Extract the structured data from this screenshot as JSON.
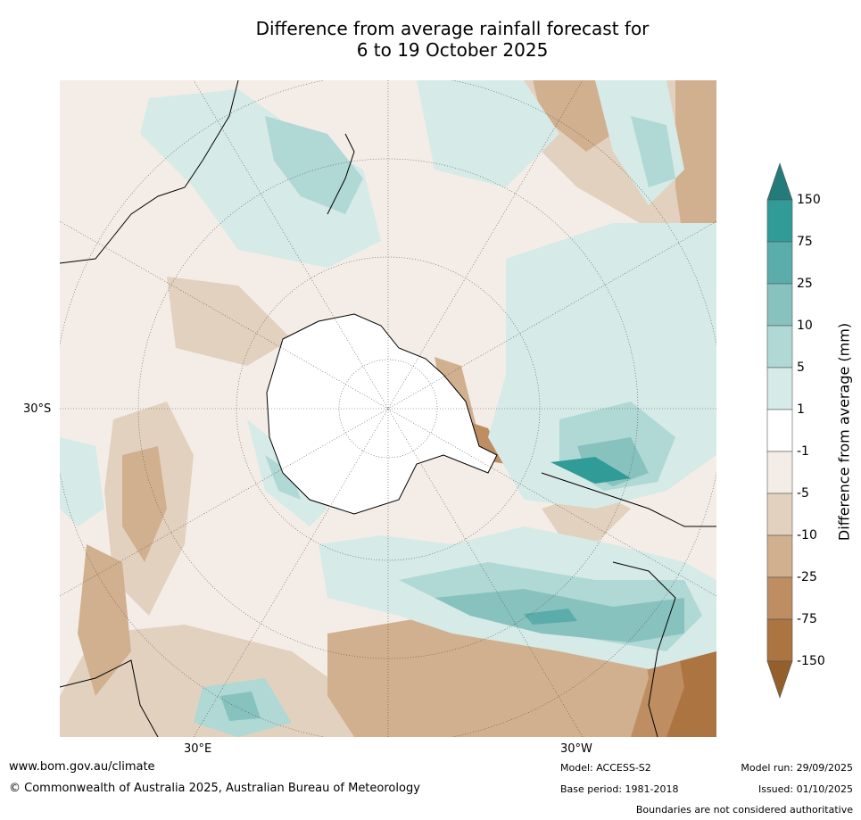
{
  "title": {
    "line1": "Difference from average rainfall forecast for",
    "line2": "6 to 19 October 2025"
  },
  "map": {
    "projection": "south-polar-stereographic",
    "lat_label": "30°S",
    "lon_labels": [
      "30°E",
      "30°W"
    ]
  },
  "colorbar": {
    "label": "Difference from average (mm)",
    "ticks": [
      "150",
      "75",
      "25",
      "10",
      "5",
      "1",
      "-1",
      "-5",
      "-10",
      "-25",
      "-75",
      "-150"
    ],
    "colors": {
      "gt150": "#237c7a",
      "c75_150": "#319b98",
      "c25_75": "#5aadaa",
      "c10_25": "#87c2bf",
      "c5_10": "#b0d8d5",
      "c1_5": "#d6eae8",
      "neutral": "#ffffff",
      "m1_m5": "#f4ede7",
      "m5_m10": "#e3d1bf",
      "m10_m25": "#d1b08f",
      "m25_m75": "#bf8d62",
      "m75_m150": "#ab7440",
      "lt_m150": "#93602b"
    }
  },
  "footer": {
    "website": "www.bom.gov.au/climate",
    "copyright": "© Commonwealth of Australia 2025, Australian Bureau of Meteorology",
    "model": "Model: ACCESS-S2",
    "base_period": "Base period: 1981-2018",
    "model_run": "Model run: 29/09/2025",
    "issued": "Issued: 01/10/2025",
    "disclaimer": "Boundaries are not considered authoritative"
  }
}
